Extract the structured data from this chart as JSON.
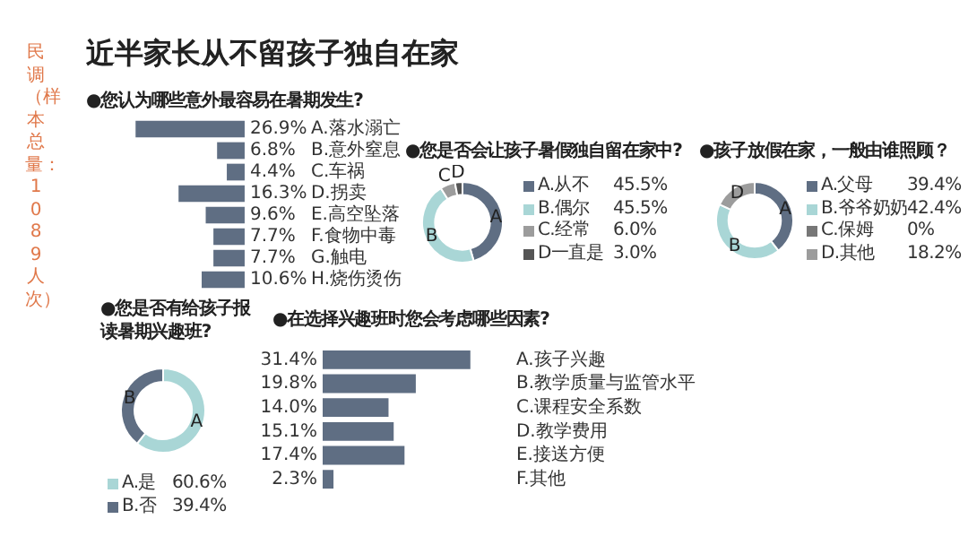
{
  "chart_data": [
    {
      "type": "other",
      "title": "近半家长从不留孩子独自在家",
      "annotations": [
        "民调（样本总量：1089人次）"
      ]
    },
    {
      "type": "bar",
      "orientation": "horizontal",
      "title": "●您认为哪些意外最容易在暑期发生?",
      "categories": [
        "A.落水溺亡",
        "B.意外窒息",
        "C.车祸",
        "D.拐卖",
        "E.高空坠落",
        "F.食物中毒",
        "G.触电",
        "H.烧伤烫伤"
      ],
      "values": [
        26.9,
        6.8,
        4.4,
        16.3,
        9.6,
        7.7,
        7.7,
        10.6
      ],
      "value_labels": [
        "26.9%",
        "6.8%",
        "4.4%",
        "16.3%",
        "9.6%",
        "7.7%",
        "7.7%",
        "10.6%"
      ],
      "color": "#5f6e83",
      "tick_labels": "y",
      "legend": false
    },
    {
      "type": "donut",
      "title": "●您是否会让孩子暑假独自留在家中?",
      "categories": [
        "A.从不",
        "B.偶尔",
        "C.经常",
        "D一直是"
      ],
      "values": [
        45.5,
        45.5,
        6.0,
        3.0
      ],
      "value_labels": [
        "45.5%",
        "45.5%",
        "6.0%",
        "3.0%"
      ],
      "colors": [
        "#5f6e83",
        "#a9d6d6",
        "#9c9c9c",
        "#555555"
      ],
      "annotations": [
        "A",
        "B",
        "C",
        "D"
      ],
      "legend": "right"
    },
    {
      "type": "donut",
      "title": "●孩子放假在家，一般由谁照顾？",
      "categories": [
        "A.父母",
        "B.爷爷奶奶",
        "C.保姆",
        "D.其他"
      ],
      "values": [
        39.4,
        42.4,
        0,
        18.2
      ],
      "value_labels": [
        "39.4%",
        "42.4%",
        "0%",
        "18.2%"
      ],
      "colors": [
        "#5f6e83",
        "#a9d6d6",
        "#777777",
        "#9c9c9c"
      ],
      "annotations": [
        "A",
        "B",
        "D"
      ],
      "legend": "right"
    },
    {
      "type": "donut",
      "title": "●您是否有给孩子报读暑期兴趣班?",
      "categories": [
        "A.是",
        "B.否"
      ],
      "values": [
        60.6,
        39.4
      ],
      "value_labels": [
        "60.6%",
        "39.4%"
      ],
      "colors": [
        "#a9d6d6",
        "#5f6e83"
      ],
      "annotations": [
        "A",
        "B"
      ],
      "legend": "bottom"
    },
    {
      "type": "bar",
      "orientation": "horizontal",
      "title": "●在选择兴趣班时您会考虑哪些因素?",
      "categories": [
        "A.孩子兴趣",
        "B.教学质量与监管水平",
        "C.课程安全系数",
        "D.教学费用",
        "E.接送方便",
        "F.其他"
      ],
      "values": [
        31.4,
        19.8,
        14.0,
        15.1,
        17.4,
        2.3
      ],
      "value_labels": [
        "31.4%",
        "19.8%",
        "14.0%",
        "15.1%",
        "17.4%",
        "2.3%"
      ],
      "color": "#5f6e83",
      "tick_labels": "y",
      "legend": false
    }
  ]
}
